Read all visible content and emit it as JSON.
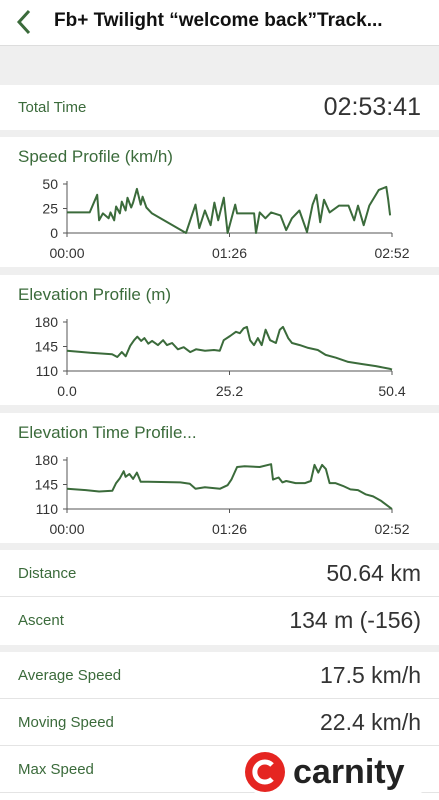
{
  "header": {
    "title": "Fb+ Twilight “welcome back”Track..."
  },
  "total_time": {
    "label": "Total Time",
    "value": "02:53:41"
  },
  "chart_data": [
    {
      "type": "line",
      "title": "Speed Profile (km/h)",
      "color": "#3b6b3b",
      "x": [
        0,
        12,
        16,
        17,
        19,
        22,
        23,
        25,
        26,
        28,
        29,
        31,
        32,
        34,
        35,
        37,
        39,
        40,
        42,
        45,
        63,
        68,
        70,
        73,
        76,
        78,
        80,
        83,
        85,
        89,
        90,
        99,
        100,
        102,
        105,
        108,
        113,
        116,
        119,
        123,
        127,
        130,
        132,
        134,
        136,
        139,
        144,
        149,
        152,
        154,
        157,
        160,
        165,
        169,
        170,
        171
      ],
      "values": [
        21,
        21,
        39,
        13,
        20,
        15,
        21,
        13,
        27,
        20,
        32,
        23,
        36,
        26,
        31,
        45,
        29,
        37,
        26,
        20,
        0,
        29,
        5,
        23,
        8,
        31,
        13,
        36,
        0,
        29,
        20,
        20,
        0,
        21,
        15,
        21,
        18,
        3,
        15,
        23,
        1,
        29,
        39,
        11,
        34,
        21,
        28,
        28,
        13,
        28,
        8,
        28,
        44,
        47,
        34,
        18
      ],
      "xlim": [
        0,
        172
      ],
      "ylim": [
        0,
        50
      ],
      "xticks": [
        {
          "value": 0,
          "label": "00:00"
        },
        {
          "value": 86,
          "label": "01:26"
        },
        {
          "value": 172,
          "label": "02:52"
        }
      ],
      "yticks": [
        0,
        25,
        50
      ]
    },
    {
      "type": "line",
      "title": "Elevation Profile (m)",
      "color": "#3b6b3b",
      "x": [
        0,
        3.6,
        7.0,
        7.8,
        8.5,
        9.1,
        9.8,
        10.4,
        10.9,
        11.5,
        12.0,
        12.6,
        13.2,
        14.1,
        14.9,
        15.5,
        16.3,
        17.2,
        18.1,
        19.1,
        20.0,
        21.4,
        22.8,
        23.7,
        24.3,
        25.3,
        26.2,
        26.8,
        27.4,
        27.9,
        28.4,
        29.0,
        29.6,
        30.2,
        30.8,
        31.5,
        32.4,
        33.0,
        33.5,
        34.3,
        34.9,
        36.1,
        37.4,
        38.9,
        40.1,
        41.7,
        43.6,
        45.7,
        47.9,
        50.1,
        50.4
      ],
      "values": [
        139,
        136,
        134,
        130,
        137,
        131,
        146,
        154,
        159,
        153,
        157,
        149,
        153,
        147,
        154,
        147,
        150,
        141,
        144,
        137,
        141,
        139,
        140,
        139,
        154,
        160,
        166,
        164,
        171,
        173,
        154,
        147,
        157,
        147,
        169,
        154,
        150,
        169,
        173,
        157,
        150,
        147,
        143,
        140,
        133,
        129,
        123,
        120,
        117,
        113,
        112
      ],
      "xlim": [
        0,
        50.4
      ],
      "ylim": [
        110,
        180
      ],
      "xticks": [
        {
          "value": 0,
          "label": "0.0"
        },
        25.2,
        50.4
      ],
      "yticks": [
        110,
        145,
        180
      ]
    },
    {
      "type": "line",
      "title": "Elevation Time Profile...",
      "color": "#3b6b3b",
      "x": [
        0,
        10,
        17,
        24,
        26,
        28,
        30,
        31,
        33,
        35,
        37,
        39,
        43,
        60,
        65,
        68,
        73,
        81,
        85,
        87,
        90,
        94,
        102,
        108,
        109,
        112,
        114,
        116,
        121,
        126,
        129,
        131,
        133,
        135,
        137,
        139,
        142,
        146,
        150,
        154,
        158,
        162,
        166,
        172
      ],
      "values": [
        139,
        137,
        135,
        136,
        147,
        154,
        164,
        156,
        160,
        153,
        162,
        149,
        149,
        148,
        146,
        139,
        141,
        139,
        144,
        152,
        170,
        171,
        170,
        174,
        152,
        155,
        148,
        150,
        147,
        147,
        150,
        173,
        162,
        173,
        167,
        147,
        147,
        143,
        138,
        137,
        131,
        128,
        122,
        110
      ],
      "xlim": [
        0,
        172
      ],
      "ylim": [
        110,
        180
      ],
      "xticks": [
        {
          "value": 0,
          "label": "00:00"
        },
        {
          "value": 86,
          "label": "01:26"
        },
        {
          "value": 172,
          "label": "02:52"
        }
      ],
      "yticks": [
        110,
        145,
        180
      ]
    }
  ],
  "stats": [
    {
      "label": "Distance",
      "value": "50.64 km"
    },
    {
      "label": "Ascent",
      "value": "134 m (-156)"
    },
    {
      "label": "Average Speed",
      "value": "17.5 km/h"
    },
    {
      "label": "Moving Speed",
      "value": "22.4 km/h"
    },
    {
      "label": "Max Speed"
    }
  ],
  "watermark": "carnity"
}
